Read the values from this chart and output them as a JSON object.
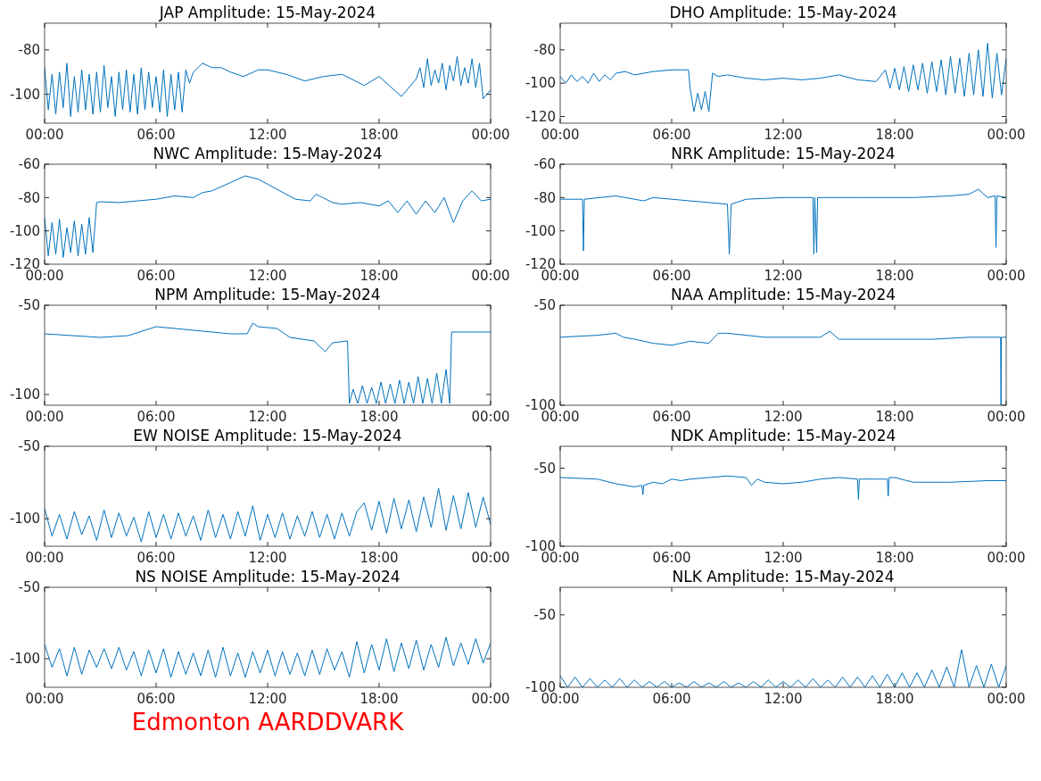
{
  "chart_data": [
    {
      "type": "line",
      "title": "JAP Amplitude: 15-May-2024",
      "xlim": [
        0,
        24
      ],
      "ylim": [
        -113,
        -68
      ],
      "yticks": [
        -100,
        -80
      ],
      "xticks": [
        {
          "value": 0,
          "label": "00:00"
        },
        {
          "value": 6,
          "label": "06:00"
        },
        {
          "value": 12,
          "label": "12:00"
        },
        {
          "value": 18,
          "label": "18:00"
        },
        {
          "value": 24,
          "label": "00:00"
        }
      ],
      "x": [
        0,
        0.2,
        0.4,
        0.6,
        0.8,
        1,
        1.2,
        1.4,
        1.6,
        1.8,
        2,
        2.2,
        2.4,
        2.6,
        2.8,
        3,
        3.2,
        3.4,
        3.6,
        3.8,
        4,
        4.2,
        4.4,
        4.6,
        4.8,
        5,
        5.2,
        5.4,
        5.6,
        5.8,
        6,
        6.2,
        6.4,
        6.6,
        6.8,
        7,
        7.2,
        7.4,
        7.6,
        7.8,
        8,
        8.5,
        9,
        9.5,
        10,
        10.7,
        11.5,
        12,
        13,
        14,
        15,
        16,
        17.2,
        18,
        19.2,
        20,
        20.2,
        20.4,
        20.6,
        20.8,
        21,
        21.2,
        21.4,
        21.6,
        21.8,
        22,
        22.2,
        22.4,
        22.6,
        22.8,
        23,
        23.2,
        23.4,
        23.6,
        23.8,
        24
      ],
      "series": [
        {
          "color": "#0072bd",
          "values": [
            -88,
            -107,
            -91,
            -109,
            -90,
            -106,
            -86,
            -110,
            -92,
            -108,
            -89,
            -107,
            -91,
            -109,
            -90,
            -108,
            -87,
            -106,
            -92,
            -110,
            -90,
            -107,
            -89,
            -108,
            -91,
            -109,
            -88,
            -107,
            -90,
            -106,
            -92,
            -108,
            -89,
            -110,
            -91,
            -107,
            -90,
            -108,
            -89,
            -95,
            -90,
            -86,
            -88,
            -88,
            -90,
            -92,
            -89,
            -89,
            -91,
            -94,
            -92,
            -91,
            -96,
            -92,
            -101,
            -93,
            -88,
            -97,
            -84,
            -96,
            -89,
            -95,
            -86,
            -98,
            -87,
            -94,
            -83,
            -96,
            -88,
            -95,
            -84,
            -97,
            -86,
            -102,
            -100,
            -98
          ]
        }
      ]
    },
    {
      "type": "line",
      "title": "DHO Amplitude: 15-May-2024",
      "xlim": [
        0,
        24
      ],
      "ylim": [
        -124,
        -64
      ],
      "yticks": [
        -120,
        -100,
        -80
      ],
      "xticks": [
        {
          "value": 0,
          "label": "00:00"
        },
        {
          "value": 6,
          "label": "06:00"
        },
        {
          "value": 12,
          "label": "12:00"
        },
        {
          "value": 18,
          "label": "18:00"
        },
        {
          "value": 24,
          "label": "00:00"
        }
      ],
      "x": [
        0,
        0.3,
        0.6,
        0.9,
        1.2,
        1.5,
        1.8,
        2.1,
        2.4,
        2.7,
        3,
        3.5,
        4,
        5,
        6,
        6.9,
        7,
        7.2,
        7.4,
        7.6,
        7.8,
        8,
        8.2,
        8.5,
        9,
        10,
        11,
        12,
        13,
        14,
        15,
        16,
        17,
        17.5,
        17.75,
        18,
        18.25,
        18.5,
        18.75,
        19,
        19.25,
        19.5,
        19.75,
        20,
        20.25,
        20.5,
        20.75,
        21,
        21.25,
        21.5,
        21.75,
        22,
        22.25,
        22.5,
        22.75,
        23,
        23.25,
        23.5,
        23.75,
        24
      ],
      "series": [
        {
          "color": "#0072bd",
          "values": [
            -96,
            -100,
            -95,
            -99,
            -96,
            -100,
            -94,
            -99,
            -95,
            -98,
            -94,
            -93,
            -95,
            -93,
            -92,
            -92,
            -104,
            -117,
            -106,
            -116,
            -105,
            -117,
            -94,
            -96,
            -95,
            -97,
            -98,
            -97,
            -98,
            -97,
            -95,
            -98,
            -99,
            -92,
            -103,
            -91,
            -104,
            -90,
            -105,
            -89,
            -104,
            -88,
            -106,
            -87,
            -105,
            -86,
            -107,
            -84,
            -106,
            -85,
            -108,
            -82,
            -107,
            -80,
            -108,
            -76,
            -109,
            -82,
            -107,
            -85
          ]
        }
      ]
    },
    {
      "type": "line",
      "title": "NWC Amplitude: 15-May-2024",
      "xlim": [
        0,
        24
      ],
      "ylim": [
        -120,
        -60
      ],
      "yticks": [
        -120,
        -100,
        -80,
        -60
      ],
      "xticks": [
        {
          "value": 0,
          "label": "00:00"
        },
        {
          "value": 6,
          "label": "06:00"
        },
        {
          "value": 12,
          "label": "12:00"
        },
        {
          "value": 18,
          "label": "18:00"
        },
        {
          "value": 24,
          "label": "00:00"
        }
      ],
      "x": [
        0,
        0.2,
        0.4,
        0.6,
        0.8,
        1,
        1.2,
        1.4,
        1.6,
        1.8,
        2,
        2.2,
        2.4,
        2.6,
        2.8,
        3,
        4,
        5,
        6,
        7,
        8,
        8.5,
        9,
        10,
        10.8,
        11.5,
        12.5,
        13.5,
        14.3,
        14.6,
        15.5,
        16,
        17,
        18,
        18.5,
        19,
        19.5,
        20,
        20.5,
        21,
        21.5,
        22,
        22.5,
        23,
        23.5,
        24
      ],
      "series": [
        {
          "color": "#0072bd",
          "values": [
            -92,
            -115,
            -95,
            -114,
            -93,
            -116,
            -98,
            -113,
            -94,
            -115,
            -96,
            -114,
            -92,
            -113,
            -83,
            -82.5,
            -83,
            -82,
            -81,
            -79,
            -80,
            -77,
            -76,
            -71,
            -67,
            -69,
            -75,
            -81,
            -82,
            -78,
            -83,
            -84,
            -83,
            -85,
            -82,
            -89,
            -82,
            -90,
            -82,
            -89,
            -80,
            -95,
            -82,
            -76,
            -82,
            -81
          ]
        }
      ]
    },
    {
      "type": "line",
      "title": "NRK Amplitude: 15-May-2024",
      "xlim": [
        0,
        24
      ],
      "ylim": [
        -120,
        -60
      ],
      "yticks": [
        -120,
        -100,
        -80,
        -60
      ],
      "xticks": [
        {
          "value": 0,
          "label": "00:00"
        },
        {
          "value": 6,
          "label": "06:00"
        },
        {
          "value": 12,
          "label": "12:00"
        },
        {
          "value": 18,
          "label": "18:00"
        },
        {
          "value": 24,
          "label": "00:00"
        }
      ],
      "x": [
        0,
        1.2,
        1.25,
        1.3,
        3,
        4.5,
        5,
        7,
        9,
        9.1,
        9.2,
        10,
        12,
        13.6,
        13.65,
        13.7,
        13.8,
        13.85,
        16,
        19,
        21,
        22,
        22.5,
        23,
        23.4,
        23.45,
        23.5,
        24
      ],
      "series": [
        {
          "color": "#0072bd",
          "values": [
            -81,
            -81,
            -112,
            -81,
            -79,
            -82,
            -80,
            -82,
            -84,
            -114,
            -84,
            -81,
            -80,
            -80,
            -114,
            -80,
            -113,
            -80,
            -80,
            -80,
            -79,
            -78,
            -75,
            -80,
            -79,
            -110,
            -79,
            -80
          ]
        }
      ]
    },
    {
      "type": "line",
      "title": "NPM Amplitude: 15-May-2024",
      "xlim": [
        0,
        24
      ],
      "ylim": [
        -106,
        -50
      ],
      "yticks": [
        -100,
        -50
      ],
      "xticks": [
        {
          "value": 0,
          "label": "00:00"
        },
        {
          "value": 6,
          "label": "06:00"
        },
        {
          "value": 12,
          "label": "12:00"
        },
        {
          "value": 18,
          "label": "18:00"
        },
        {
          "value": 24,
          "label": "00:00"
        }
      ],
      "x": [
        0,
        3,
        4.5,
        6,
        8,
        10,
        10.9,
        11.2,
        11.5,
        12.5,
        13.2,
        14.5,
        15.1,
        15.5,
        16.3,
        16.4,
        16.6,
        16.85,
        17.1,
        17.35,
        17.6,
        17.85,
        18.1,
        18.35,
        18.6,
        18.85,
        19.1,
        19.35,
        19.6,
        19.85,
        20.1,
        20.35,
        20.6,
        20.85,
        21.1,
        21.35,
        21.6,
        21.8,
        21.9,
        24
      ],
      "series": [
        {
          "color": "#0072bd",
          "values": [
            -66,
            -68,
            -67,
            -62,
            -64,
            -66,
            -66,
            -60,
            -62,
            -63,
            -68,
            -70,
            -76,
            -71,
            -70,
            -105,
            -97,
            -105,
            -95,
            -105,
            -96,
            -105,
            -93,
            -105,
            -94,
            -105,
            -92,
            -105,
            -93,
            -105,
            -90,
            -105,
            -91,
            -105,
            -88,
            -105,
            -86,
            -105,
            -65,
            -65
          ]
        }
      ]
    },
    {
      "type": "line",
      "title": "NAA Amplitude: 15-May-2024",
      "xlim": [
        0,
        24
      ],
      "ylim": [
        -100,
        -50
      ],
      "yticks": [
        -100,
        -50
      ],
      "xticks": [
        {
          "value": 0,
          "label": "00:00"
        },
        {
          "value": 6,
          "label": "06:00"
        },
        {
          "value": 12,
          "label": "12:00"
        },
        {
          "value": 18,
          "label": "18:00"
        },
        {
          "value": 24,
          "label": "00:00"
        }
      ],
      "x": [
        0,
        2,
        3,
        3.4,
        4,
        5,
        6,
        7,
        8,
        8.5,
        9,
        11,
        14,
        14.5,
        15,
        18,
        20,
        22,
        23,
        23.7,
        23.72,
        23.74,
        24
      ],
      "series": [
        {
          "color": "#0072bd",
          "values": [
            -66,
            -65,
            -64,
            -66,
            -67,
            -69,
            -70,
            -68,
            -69,
            -64,
            -64,
            -66,
            -66,
            -63,
            -67,
            -67,
            -67,
            -66,
            -66,
            -66,
            -100,
            -66,
            -66
          ]
        }
      ]
    },
    {
      "type": "line",
      "title": "EW NOISE Amplitude: 15-May-2024",
      "xlim": [
        0,
        24
      ],
      "ylim": [
        -119,
        -50
      ],
      "yticks": [
        -100,
        -50
      ],
      "xticks": [
        {
          "value": 0,
          "label": "00:00"
        },
        {
          "value": 6,
          "label": "06:00"
        },
        {
          "value": 12,
          "label": "12:00"
        },
        {
          "value": 18,
          "label": "18:00"
        },
        {
          "value": 24,
          "label": "00:00"
        }
      ],
      "x": [
        0,
        0.4,
        0.8,
        1.2,
        1.6,
        2,
        2.4,
        2.8,
        3.2,
        3.6,
        4,
        4.4,
        4.8,
        5.2,
        5.6,
        6,
        6.4,
        6.8,
        7.2,
        7.6,
        8,
        8.4,
        8.8,
        9.2,
        9.6,
        10,
        10.4,
        10.8,
        11.2,
        11.6,
        12,
        12.4,
        12.8,
        13.2,
        13.6,
        14,
        14.4,
        14.8,
        15.2,
        15.6,
        16,
        16.4,
        16.8,
        17.2,
        17.6,
        18,
        18.4,
        18.8,
        19.2,
        19.6,
        20,
        20.4,
        20.8,
        21.2,
        21.6,
        22,
        22.4,
        22.8,
        23.2,
        23.6,
        24
      ],
      "series": [
        {
          "color": "#0072bd",
          "values": [
            -93,
            -112,
            -97,
            -114,
            -95,
            -111,
            -98,
            -115,
            -94,
            -113,
            -96,
            -112,
            -99,
            -116,
            -95,
            -113,
            -97,
            -114,
            -96,
            -112,
            -98,
            -115,
            -94,
            -113,
            -97,
            -114,
            -95,
            -112,
            -91,
            -115,
            -97,
            -113,
            -96,
            -114,
            -98,
            -112,
            -95,
            -113,
            -97,
            -114,
            -96,
            -112,
            -95,
            -89,
            -108,
            -88,
            -110,
            -86,
            -107,
            -87,
            -109,
            -85,
            -106,
            -79,
            -108,
            -84,
            -107,
            -82,
            -106,
            -85,
            -104
          ]
        }
      ]
    },
    {
      "type": "line",
      "title": "NDK Amplitude: 15-May-2024",
      "xlim": [
        0,
        24
      ],
      "ylim": [
        -100,
        -36
      ],
      "yticks": [
        -100,
        -50
      ],
      "xticks": [
        {
          "value": 0,
          "label": "00:00"
        },
        {
          "value": 6,
          "label": "06:00"
        },
        {
          "value": 12,
          "label": "12:00"
        },
        {
          "value": 18,
          "label": "18:00"
        },
        {
          "value": 24,
          "label": "00:00"
        }
      ],
      "x": [
        0,
        2,
        3,
        4,
        4.4,
        4.45,
        4.5,
        5,
        5.5,
        6,
        6.5,
        7,
        8,
        9,
        10,
        10.3,
        10.6,
        11,
        12,
        13,
        14,
        15,
        16,
        16.05,
        16.1,
        17,
        17.6,
        17.65,
        17.7,
        18,
        19,
        21,
        23,
        24
      ],
      "series": [
        {
          "color": "#0072bd",
          "values": [
            -56,
            -57,
            -60,
            -62,
            -61,
            -67,
            -61,
            -59,
            -60,
            -57,
            -58,
            -57,
            -56,
            -55,
            -56,
            -61,
            -57,
            -59,
            -60,
            -59,
            -57,
            -56,
            -57,
            -70,
            -57,
            -57,
            -57,
            -68,
            -56,
            -56,
            -59,
            -59,
            -58,
            -58
          ]
        }
      ]
    },
    {
      "type": "line",
      "title": "NS NOISE Amplitude: 15-May-2024",
      "xlim": [
        0,
        24
      ],
      "ylim": [
        -120,
        -50
      ],
      "yticks": [
        -100,
        -50
      ],
      "xticks": [
        {
          "value": 0,
          "label": "00:00"
        },
        {
          "value": 6,
          "label": "06:00"
        },
        {
          "value": 12,
          "label": "12:00"
        },
        {
          "value": 18,
          "label": "18:00"
        },
        {
          "value": 24,
          "label": "00:00"
        }
      ],
      "annotations": [
        "Edmonton AARDDVARK"
      ],
      "x": [
        0,
        0.4,
        0.8,
        1.2,
        1.6,
        2,
        2.4,
        2.8,
        3.2,
        3.6,
        4,
        4.4,
        4.8,
        5.2,
        5.6,
        6,
        6.4,
        6.8,
        7.2,
        7.6,
        8,
        8.4,
        8.8,
        9.2,
        9.6,
        10,
        10.4,
        10.8,
        11.2,
        11.6,
        12,
        12.4,
        12.8,
        13.2,
        13.6,
        14,
        14.4,
        14.8,
        15.2,
        15.6,
        16,
        16.4,
        16.8,
        17.2,
        17.6,
        18,
        18.4,
        18.8,
        19.2,
        19.6,
        20,
        20.4,
        20.8,
        21.2,
        21.6,
        22,
        22.4,
        22.8,
        23.2,
        23.6,
        24
      ],
      "series": [
        {
          "color": "#0072bd",
          "values": [
            -90,
            -106,
            -93,
            -112,
            -92,
            -111,
            -94,
            -106,
            -93,
            -107,
            -92,
            -108,
            -95,
            -112,
            -94,
            -110,
            -93,
            -113,
            -95,
            -111,
            -96,
            -112,
            -94,
            -113,
            -92,
            -112,
            -96,
            -113,
            -95,
            -110,
            -94,
            -112,
            -95,
            -111,
            -96,
            -112,
            -94,
            -111,
            -93,
            -108,
            -95,
            -113,
            -88,
            -110,
            -90,
            -108,
            -86,
            -109,
            -89,
            -107,
            -87,
            -108,
            -90,
            -106,
            -85,
            -105,
            -89,
            -104,
            -86,
            -103,
            -89
          ]
        }
      ]
    },
    {
      "type": "line",
      "title": "NLK Amplitude: 15-May-2024",
      "xlim": [
        0,
        24
      ],
      "ylim": [
        -100,
        -31
      ],
      "yticks": [
        -100,
        -50
      ],
      "xticks": [
        {
          "value": 0,
          "label": "00:00"
        },
        {
          "value": 6,
          "label": "06:00"
        },
        {
          "value": 12,
          "label": "12:00"
        },
        {
          "value": 18,
          "label": "18:00"
        },
        {
          "value": 24,
          "label": "00:00"
        }
      ],
      "x": [
        0,
        0.4,
        0.8,
        1.2,
        1.6,
        2,
        2.4,
        2.8,
        3.2,
        3.6,
        4,
        4.4,
        4.8,
        5.2,
        5.6,
        6,
        6.4,
        6.8,
        7.2,
        7.6,
        8,
        8.4,
        8.8,
        9.2,
        9.6,
        10,
        10.4,
        10.8,
        11.2,
        11.6,
        12,
        12.4,
        12.8,
        13.2,
        13.6,
        14,
        14.4,
        14.8,
        15.2,
        15.6,
        16,
        16.4,
        16.8,
        17.2,
        17.6,
        18,
        18.4,
        18.8,
        19.2,
        19.6,
        20,
        20.4,
        20.8,
        21.2,
        21.6,
        22,
        22.4,
        22.8,
        23.2,
        23.6,
        24
      ],
      "series": [
        {
          "color": "#0072bd",
          "values": [
            -92,
            -100,
            -93,
            -100,
            -94,
            -100,
            -95,
            -100,
            -94,
            -100,
            -95,
            -100,
            -96,
            -100,
            -96,
            -100,
            -97,
            -100,
            -96,
            -100,
            -97,
            -100,
            -96,
            -100,
            -97,
            -100,
            -96,
            -100,
            -95,
            -100,
            -96,
            -100,
            -95,
            -100,
            -94,
            -100,
            -95,
            -100,
            -93,
            -100,
            -93,
            -100,
            -92,
            -100,
            -91,
            -100,
            -90,
            -100,
            -90,
            -100,
            -88,
            -100,
            -86,
            -100,
            -74,
            -100,
            -85,
            -100,
            -84,
            -100,
            -85
          ]
        }
      ]
    }
  ]
}
